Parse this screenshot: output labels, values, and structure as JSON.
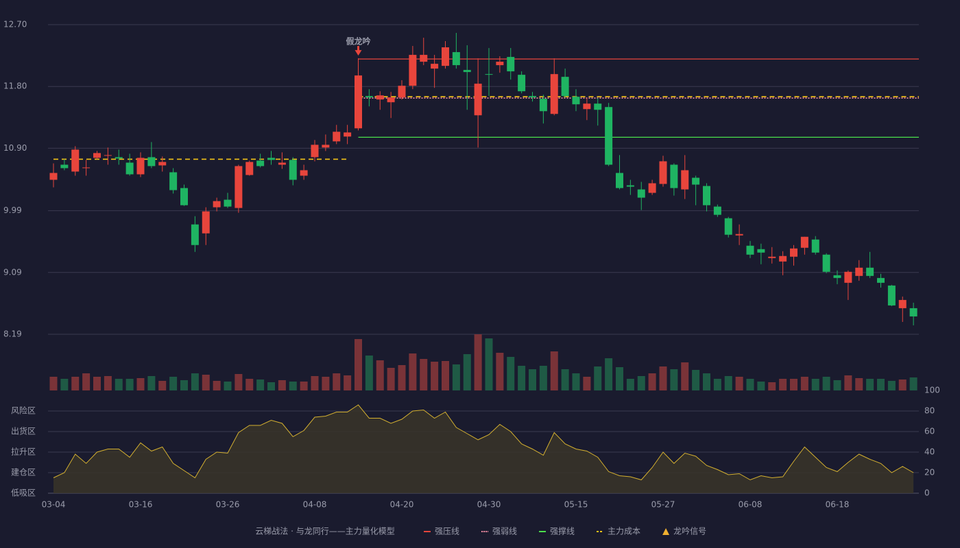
{
  "chart_data": [
    {
      "type": "candlestick",
      "title": "云梯战法 · 与龙同行——主力量化模型",
      "categories": [
        "03-04",
        null,
        null,
        null,
        null,
        null,
        null,
        null,
        "03-16",
        null,
        null,
        null,
        null,
        null,
        null,
        null,
        "03-26",
        null,
        null,
        null,
        null,
        null,
        null,
        null,
        "04-08",
        null,
        null,
        null,
        null,
        null,
        null,
        null,
        "04-20",
        null,
        null,
        null,
        null,
        null,
        null,
        null,
        "04-30",
        null,
        null,
        null,
        null,
        null,
        null,
        null,
        "05-15",
        null,
        null,
        null,
        null,
        null,
        null,
        null,
        "05-27",
        null,
        null,
        null,
        null,
        null,
        null,
        null,
        "06-08",
        null,
        null,
        null,
        null,
        null,
        null,
        null,
        "06-18",
        null,
        null,
        null,
        null,
        null,
        null,
        null
      ],
      "open": [
        10.44,
        10.66,
        10.56,
        10.61,
        10.76,
        10.79,
        10.77,
        10.69,
        10.52,
        10.77,
        10.65,
        10.55,
        10.32,
        9.79,
        9.66,
        10.04,
        10.15,
        10.03,
        10.51,
        10.72,
        10.76,
        10.66,
        10.73,
        10.5,
        10.77,
        10.91,
        11.0,
        11.07,
        11.19,
        11.66,
        11.61,
        11.57,
        11.64,
        11.81,
        12.16,
        12.06,
        12.1,
        12.3,
        12.04,
        11.38,
        11.98,
        12.11,
        12.23,
        11.97,
        11.66,
        11.62,
        11.4,
        11.94,
        11.65,
        11.47,
        11.55,
        11.5,
        10.54,
        10.36,
        10.3,
        10.25,
        10.38,
        10.66,
        10.3,
        10.47,
        10.35,
        10.05,
        9.88,
        9.63,
        9.48,
        9.43,
        9.3,
        9.25,
        9.32,
        9.45,
        9.57,
        9.35,
        9.05,
        8.94,
        9.04,
        9.16,
        9.01,
        8.9,
        8.57,
        8.57
      ],
      "close": [
        10.54,
        10.61,
        10.88,
        10.62,
        10.83,
        10.8,
        10.75,
        10.52,
        10.76,
        10.64,
        10.7,
        10.29,
        10.07,
        9.49,
        9.98,
        10.13,
        10.05,
        10.64,
        10.7,
        10.64,
        10.73,
        10.69,
        10.44,
        10.58,
        10.95,
        10.95,
        11.14,
        11.13,
        11.96,
        11.64,
        11.67,
        11.64,
        11.81,
        12.26,
        12.26,
        12.13,
        12.37,
        12.11,
        12.01,
        11.84,
        11.97,
        12.16,
        12.02,
        11.73,
        11.64,
        11.44,
        11.98,
        11.66,
        11.54,
        11.55,
        11.46,
        10.66,
        10.32,
        10.34,
        10.18,
        10.39,
        10.71,
        10.32,
        10.58,
        10.37,
        10.07,
        9.93,
        9.64,
        9.65,
        9.35,
        9.38,
        9.32,
        9.33,
        9.44,
        9.61,
        9.38,
        9.1,
        9.01,
        9.1,
        9.16,
        9.04,
        8.94,
        8.61,
        8.69,
        8.45
      ],
      "low": [
        10.33,
        10.58,
        10.5,
        10.5,
        10.74,
        10.66,
        10.66,
        10.5,
        10.48,
        10.61,
        10.56,
        10.24,
        10.06,
        9.39,
        9.49,
        9.98,
        10.03,
        9.96,
        10.5,
        10.62,
        10.66,
        10.6,
        10.36,
        10.44,
        10.71,
        10.86,
        10.96,
        10.96,
        11.16,
        11.51,
        11.46,
        11.34,
        11.61,
        11.76,
        12.11,
        11.78,
        12.06,
        12.06,
        11.46,
        10.91,
        11.66,
        12.0,
        11.9,
        11.7,
        11.58,
        11.26,
        11.38,
        11.64,
        11.44,
        11.31,
        11.23,
        10.64,
        10.3,
        10.22,
        10.0,
        10.22,
        10.34,
        10.21,
        10.16,
        10.07,
        9.98,
        9.9,
        9.6,
        9.49,
        9.3,
        9.21,
        9.22,
        9.05,
        9.19,
        9.35,
        9.35,
        9.08,
        8.92,
        8.69,
        8.97,
        9.01,
        8.87,
        8.6,
        8.37,
        8.32
      ],
      "high": [
        10.68,
        10.74,
        10.93,
        10.73,
        10.86,
        10.91,
        10.88,
        10.82,
        10.84,
        10.99,
        10.78,
        10.61,
        10.37,
        9.91,
        10.04,
        10.18,
        10.25,
        10.66,
        10.72,
        10.82,
        10.86,
        10.84,
        10.77,
        10.66,
        11.02,
        11.1,
        11.24,
        11.24,
        12.21,
        11.76,
        11.73,
        11.72,
        11.89,
        12.39,
        12.51,
        12.26,
        12.46,
        12.58,
        12.4,
        12.21,
        12.36,
        12.24,
        12.36,
        12.02,
        11.72,
        11.68,
        12.21,
        12.06,
        11.76,
        11.63,
        11.63,
        11.56,
        10.8,
        10.44,
        10.41,
        10.44,
        10.79,
        10.68,
        10.8,
        10.5,
        10.39,
        10.08,
        9.9,
        9.79,
        9.55,
        9.51,
        9.46,
        9.4,
        9.49,
        9.61,
        9.62,
        9.37,
        9.12,
        9.12,
        9.27,
        9.39,
        9.07,
        8.91,
        8.74,
        8.65
      ],
      "up_color": "#e8453c",
      "down_color": "#1fb462",
      "ylim": [
        8.19,
        12.7
      ],
      "yticks": [
        {
          "value": 12.7,
          "label": "12.70"
        },
        {
          "value": 11.8,
          "label": "11.80"
        },
        {
          "value": 10.9,
          "label": "10.90"
        },
        9.99,
        9.09,
        8.19
      ],
      "grid": true,
      "levels": [
        {
          "name": "强压线",
          "color": "#e8453c",
          "style": "solid",
          "segments": [
            {
              "from": 28,
              "to": 79,
              "value": 12.2
            }
          ]
        },
        {
          "name": "强弱线",
          "color": "#f08aa0",
          "style": "dotted",
          "segments": [
            {
              "from": 28,
              "to": 79,
              "value": 11.63
            }
          ]
        },
        {
          "name": "强撑线",
          "color": "#4be04b",
          "style": "solid",
          "segments": [
            {
              "from": 28,
              "to": 79,
              "value": 11.06
            }
          ]
        },
        {
          "name": "主力成本",
          "color": "#f5c518",
          "style": "dashed",
          "segments": [
            {
              "from": 0,
              "to": 27,
              "value": 10.74
            },
            {
              "from": 28,
              "to": 79,
              "value": 11.65
            }
          ]
        }
      ],
      "signal": {
        "name": "龙吟信号",
        "color": "#f0b030",
        "points": [
          {
            "index": 28,
            "label": "假龙吟"
          }
        ]
      }
    },
    {
      "type": "bar",
      "values": [
        20,
        17,
        20,
        25,
        20,
        21,
        17,
        17,
        18,
        21,
        14,
        20,
        15,
        25,
        23,
        14,
        13,
        24,
        17,
        16,
        12,
        15,
        13,
        13,
        21,
        20,
        25,
        22,
        75,
        51,
        44,
        33,
        37,
        54,
        46,
        42,
        43,
        38,
        53,
        82,
        76,
        55,
        49,
        36,
        31,
        36,
        57,
        31,
        25,
        20,
        35,
        47,
        34,
        17,
        21,
        25,
        35,
        31,
        41,
        30,
        25,
        17,
        21,
        20,
        17,
        13,
        12,
        17,
        17,
        20,
        17,
        20,
        15,
        22,
        18,
        17,
        17,
        14,
        16,
        19
      ],
      "up_color": "#7a3338",
      "down_color": "#1f5a45"
    },
    {
      "type": "area",
      "values": [
        15,
        20,
        38,
        29,
        40,
        43,
        43,
        35,
        49,
        41,
        45,
        29,
        22,
        15,
        33,
        40,
        39,
        59,
        66,
        66,
        71,
        68,
        55,
        61,
        74,
        75,
        79,
        79,
        86,
        73,
        73,
        68,
        72,
        80,
        81,
        73,
        79,
        64,
        58,
        52,
        57,
        67,
        60,
        48,
        43,
        37,
        59,
        48,
        43,
        41,
        35,
        21,
        17,
        16,
        13,
        25,
        40,
        29,
        39,
        36,
        27,
        23,
        18,
        19,
        13,
        17,
        15,
        16,
        31,
        45,
        35,
        25,
        21,
        30,
        38,
        33,
        29,
        20,
        26,
        20
      ],
      "color": "#d4b030",
      "ylim": [
        0,
        100
      ],
      "yticks": [
        0,
        20,
        40,
        60,
        80,
        100
      ],
      "tick_colors": [
        "#ff5050",
        "#ff5050",
        "#3fa0ff",
        "#e040e0",
        "#f0a020",
        "#2ecc40"
      ],
      "grid": true,
      "zones": [
        {
          "value": 80,
          "label": "风险区",
          "color": "#f0a020"
        },
        {
          "value": 60,
          "label": "出货区",
          "color": "#e040e0"
        },
        {
          "value": 40,
          "label": "拉升区",
          "color": "#3fa0ff"
        },
        {
          "value": 20,
          "label": "建仓区",
          "color": "#ff5050"
        },
        {
          "value": 0,
          "label": "低吸区",
          "color": "#ff5050"
        }
      ]
    }
  ]
}
